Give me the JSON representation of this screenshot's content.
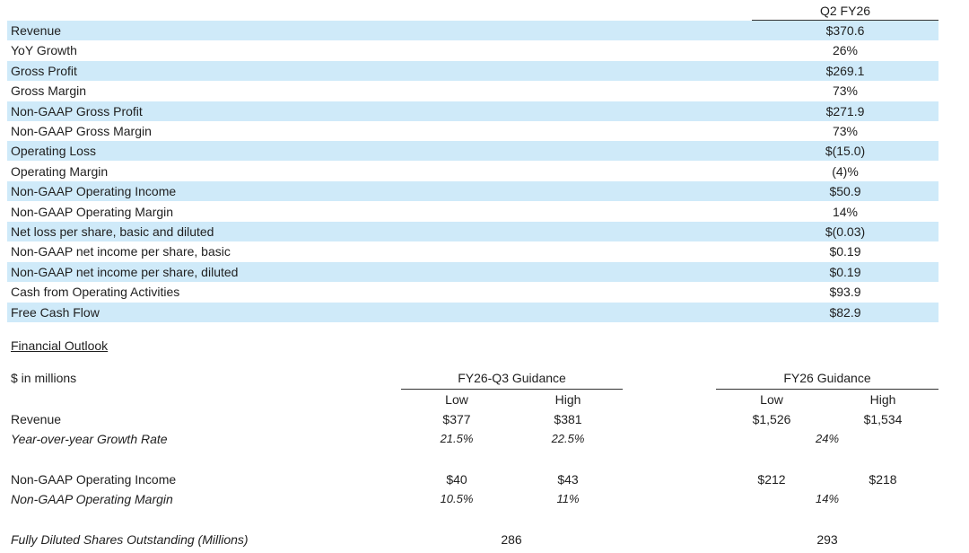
{
  "highlights": {
    "column_header": "Q2 FY26",
    "rows": [
      {
        "label": "Revenue",
        "value": "$370.6"
      },
      {
        "label": "YoY Growth",
        "value": "26%"
      },
      {
        "label": "Gross Profit",
        "value": "$269.1"
      },
      {
        "label": "Gross Margin",
        "value": "73%"
      },
      {
        "label": "Non-GAAP Gross Profit",
        "value": "$271.9"
      },
      {
        "label": "Non-GAAP Gross Margin",
        "value": "73%"
      },
      {
        "label": "Operating Loss",
        "value": "$(15.0)"
      },
      {
        "label": "Operating Margin",
        "value": "(4)%"
      },
      {
        "label": "Non-GAAP Operating Income",
        "value": "$50.9"
      },
      {
        "label": "Non-GAAP Operating Margin",
        "value": "14%"
      },
      {
        "label": "Net loss per share, basic and diluted",
        "value": "$(0.03)"
      },
      {
        "label": "Non-GAAP net income per share, basic",
        "value": "$0.19"
      },
      {
        "label": "Non-GAAP net income per share, diluted",
        "value": "$0.19"
      },
      {
        "label": "Cash from Operating Activities",
        "value": "$93.9"
      },
      {
        "label": "Free Cash Flow",
        "value": "$82.9"
      }
    ],
    "shade_color": "#cfeaf9"
  },
  "outlook": {
    "title": "Financial Outlook",
    "units": "$ in millions",
    "q3_header": "FY26-Q3 Guidance",
    "fy_header": "FY26 Guidance",
    "low": "Low",
    "high": "High",
    "revenue": {
      "label": "Revenue",
      "q3_low": "$377",
      "q3_high": "$381",
      "fy_low": "$1,526",
      "fy_high": "$1,534"
    },
    "growth": {
      "label": "Year-over-year Growth Rate",
      "q3_low": "21.5%",
      "q3_high": "22.5%",
      "fy": "24%"
    },
    "op_income": {
      "label": "Non-GAAP Operating Income",
      "q3_low": "$40",
      "q3_high": "$43",
      "fy_low": "$212",
      "fy_high": "$218"
    },
    "op_margin": {
      "label": "Non-GAAP Operating Margin",
      "q3_low": "10.5%",
      "q3_high": "11%",
      "fy": "14%"
    },
    "shares": {
      "label": "Fully Diluted Shares Outstanding (Millions)",
      "q3": "286",
      "fy": "293"
    }
  }
}
